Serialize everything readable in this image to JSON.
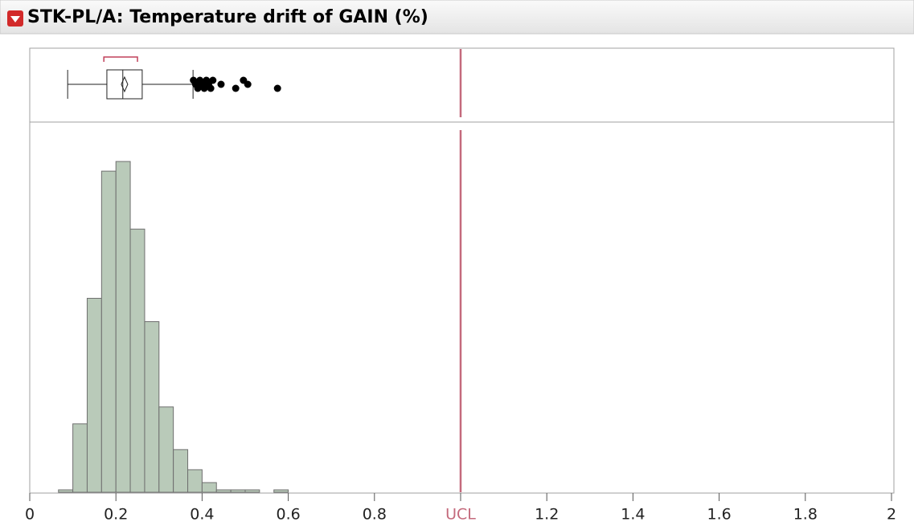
{
  "chart_data": {
    "type": "histogram",
    "title": "STK-PL/A: Temperature drift of GAIN (%)",
    "bins": [
      0.0667,
      0.1,
      0.1333,
      0.1667,
      0.2,
      0.2333,
      0.2667,
      0.3,
      0.3333,
      0.3667,
      0.4,
      0.4333,
      0.4667,
      0.5,
      0.5333,
      0.5667,
      0.6
    ],
    "values": [
      3,
      85,
      241,
      399,
      411,
      327,
      212,
      106,
      53,
      28,
      12,
      3,
      3,
      3,
      0,
      3
    ],
    "color": "#b9cab9",
    "xlim": [
      0,
      2
    ],
    "ylim": [
      0,
      452
    ],
    "xticks": [
      0,
      0.2,
      0.4,
      0.6,
      0.8,
      {
        "value": 1,
        "label": "UCL"
      },
      1.2,
      1.4,
      1.6,
      1.8,
      2
    ],
    "ucl_color": "#c46a7c",
    "boxplot": {
      "whisker_low": 0.088,
      "q1": 0.179,
      "median": 0.216,
      "mean": 0.22,
      "q3": 0.261,
      "whisker_high": 0.379,
      "shortest_half": [
        0.172,
        0.25
      ],
      "outliers": [
        0.38,
        0.385,
        0.39,
        0.395,
        0.4,
        0.405,
        0.41,
        0.415,
        0.42,
        0.425,
        0.444,
        0.478,
        0.496,
        0.506,
        0.575
      ]
    }
  }
}
